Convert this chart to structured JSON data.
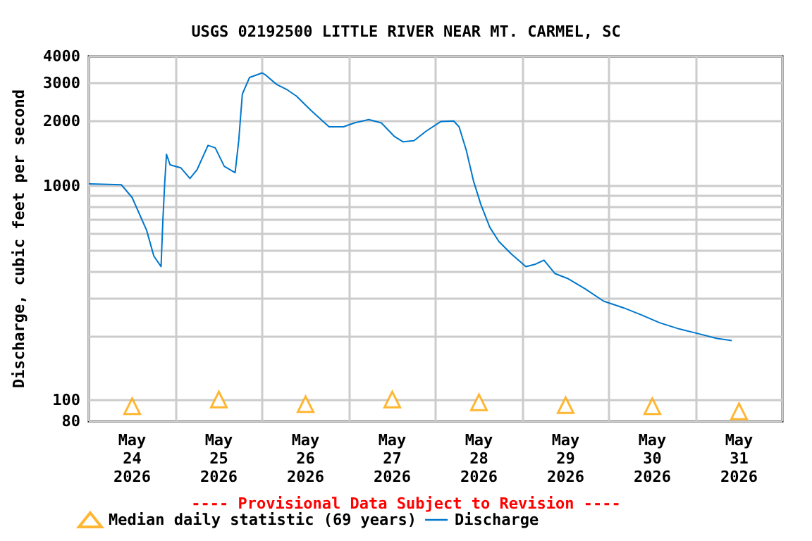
{
  "chart_data": {
    "type": "line",
    "title": "USGS 02192500 LITTLE RIVER NEAR MT. CARMEL, SC",
    "ylabel": "Discharge, cubic feet per second",
    "annotations": [
      "---- Provisional Data Subject to Revision ----"
    ],
    "log": "y",
    "grid": true,
    "legend": "bottom",
    "xlim": [
      "2026-05-24T00:00",
      "2026-06-01T00:00"
    ],
    "xticks": [
      {
        "value": "2026-05-24T00:00",
        "label": null
      },
      {
        "value": "2026-05-24T12:00",
        "label": "May 24 2026"
      },
      {
        "value": "2026-05-25T00:00",
        "label": null
      },
      {
        "value": "2026-05-25T12:00",
        "label": "May 25 2026"
      },
      {
        "value": "2026-05-26T00:00",
        "label": null
      },
      {
        "value": "2026-05-26T12:00",
        "label": "May 26 2026"
      },
      {
        "value": "2026-05-27T00:00",
        "label": null
      },
      {
        "value": "2026-05-27T12:00",
        "label": "May 27 2026"
      },
      {
        "value": "2026-05-28T00:00",
        "label": null
      },
      {
        "value": "2026-05-28T12:00",
        "label": "May 28 2026"
      },
      {
        "value": "2026-05-29T00:00",
        "label": null
      },
      {
        "value": "2026-05-29T12:00",
        "label": "May 29 2026"
      },
      {
        "value": "2026-05-30T00:00",
        "label": null
      },
      {
        "value": "2026-05-30T12:00",
        "label": "May 30 2026"
      },
      {
        "value": "2026-05-31T00:00",
        "label": null
      },
      {
        "value": "2026-05-31T12:00",
        "label": "May 31 2026"
      },
      {
        "value": "2026-06-01T00:00",
        "label": null
      }
    ],
    "ylim": [
      80,
      4000
    ],
    "yticks": [
      80,
      100,
      {
        "value": 200,
        "label": null
      },
      {
        "value": 300,
        "label": null
      },
      {
        "value": 400,
        "label": null
      },
      {
        "value": 500,
        "label": null
      },
      {
        "value": 600,
        "label": null
      },
      {
        "value": 700,
        "label": null
      },
      {
        "value": 800,
        "label": null
      },
      {
        "value": 900,
        "label": null
      },
      1000,
      2000,
      3000,
      4000
    ],
    "series": [
      {
        "name": "Median daily statistic (69 years)",
        "type": "scatter",
        "marker": "triangle",
        "color": "#ffa500",
        "x": [
          "2026-05-24T12:00",
          "2026-05-25T12:00",
          "2026-05-26T12:00",
          "2026-05-27T12:00",
          "2026-05-28T12:00",
          "2026-05-29T12:00",
          "2026-05-30T12:00",
          "2026-05-31T12:00"
        ],
        "values": [
          94,
          101,
          96,
          101,
          98,
          95,
          94,
          89
        ]
      },
      {
        "name": "Discharge",
        "marker": "none",
        "color": "#0077cc",
        "x": [
          "2026-05-24T00:00",
          "2026-05-24T09:00",
          "2026-05-24T12:00",
          "2026-05-24T16:00",
          "2026-05-24T18:00",
          "2026-05-24T20:00",
          "2026-05-24T20:30",
          "2026-05-24T21:00",
          "2026-05-24T21:30",
          "2026-05-24T22:30",
          "2026-05-25T01:30",
          "2026-05-25T04:00",
          "2026-05-25T06:00",
          "2026-05-25T09:00",
          "2026-05-25T11:00",
          "2026-05-25T13:30",
          "2026-05-25T16:30",
          "2026-05-25T17:30",
          "2026-05-25T18:30",
          "2026-05-25T20:30",
          "2026-05-26T00:00",
          "2026-05-26T01:00",
          "2026-05-26T04:00",
          "2026-05-26T07:00",
          "2026-05-26T09:30",
          "2026-05-26T13:30",
          "2026-05-26T18:30",
          "2026-05-26T22:30",
          "2026-05-27T01:30",
          "2026-05-27T05:30",
          "2026-05-27T09:00",
          "2026-05-27T12:30",
          "2026-05-27T15:00",
          "2026-05-27T18:00",
          "2026-05-27T21:30",
          "2026-05-28T01:30",
          "2026-05-28T05:00",
          "2026-05-28T06:30",
          "2026-05-28T08:30",
          "2026-05-28T10:30",
          "2026-05-28T12:30",
          "2026-05-28T15:00",
          "2026-05-28T17:30",
          "2026-05-28T21:00",
          "2026-05-29T01:00",
          "2026-05-29T03:30",
          "2026-05-29T06:00",
          "2026-05-29T09:00",
          "2026-05-29T12:30",
          "2026-05-29T17:30",
          "2026-05-29T22:30",
          "2026-05-30T04:00",
          "2026-05-30T09:00",
          "2026-05-30T14:00",
          "2026-05-30T19:30",
          "2026-05-31T00:30",
          "2026-05-31T05:30",
          "2026-05-31T10:00"
        ],
        "values": [
          1020,
          1010,
          880,
          620,
          470,
          420,
          690,
          1020,
          1400,
          1250,
          1210,
          1080,
          1190,
          1540,
          1500,
          1230,
          1150,
          1620,
          2670,
          3190,
          3350,
          3270,
          2960,
          2790,
          2610,
          2240,
          1880,
          1880,
          1960,
          2030,
          1960,
          1700,
          1600,
          1620,
          1800,
          1990,
          2000,
          1880,
          1460,
          1050,
          820,
          640,
          550,
          480,
          420,
          430,
          450,
          390,
          370,
          330,
          290,
          270,
          250,
          230,
          215,
          205,
          195,
          190
        ]
      }
    ]
  }
}
